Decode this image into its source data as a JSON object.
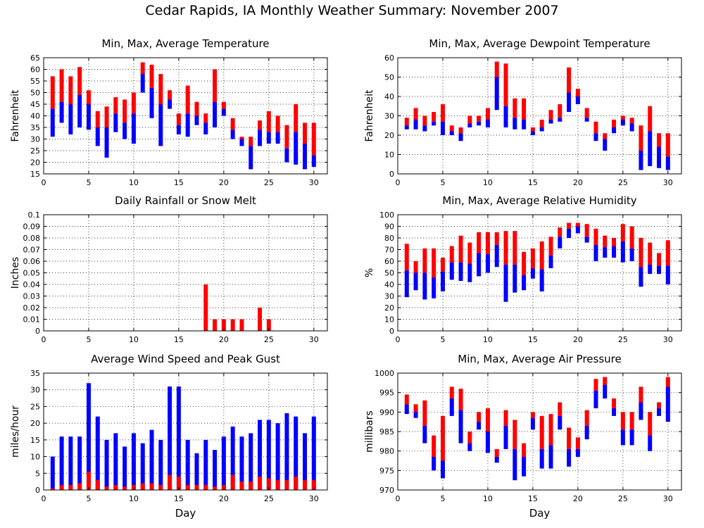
{
  "title": "Cedar Rapids, IA Monthly Weather Summary: November 2007",
  "colors": {
    "red": "#ff0000",
    "blue": "#0000ff",
    "grid": "#000000"
  },
  "chart_data": [
    {
      "id": "temperature",
      "type": "bar",
      "title": "Min, Max, Average Temperature",
      "ylabel": "Fahrenheit",
      "xlabel": "",
      "xlim": [
        0,
        31.5
      ],
      "ylim": [
        15,
        65
      ],
      "yticks": [
        15,
        20,
        25,
        30,
        35,
        40,
        45,
        50,
        55,
        60,
        65
      ],
      "xticks": [
        0,
        5,
        10,
        15,
        20,
        25,
        30
      ],
      "grid": "on",
      "days": [
        1,
        2,
        3,
        4,
        5,
        6,
        7,
        8,
        9,
        10,
        11,
        12,
        13,
        14,
        15,
        16,
        17,
        18,
        19,
        20,
        21,
        22,
        23,
        24,
        25,
        26,
        27,
        28,
        29,
        30
      ],
      "min": [
        31,
        37,
        32,
        35,
        34,
        27,
        22,
        33,
        30,
        28,
        50,
        39,
        27,
        43,
        32,
        31,
        36,
        32,
        35,
        40,
        30,
        27,
        17,
        27,
        28,
        28,
        20,
        19,
        17,
        18
      ],
      "avg": [
        43,
        46,
        45,
        49,
        45,
        35,
        35,
        41,
        37,
        41,
        58,
        52,
        45,
        47,
        36,
        41,
        40,
        37,
        46,
        43,
        34,
        30,
        27,
        34,
        33,
        33,
        26,
        33,
        28,
        23
      ],
      "max": [
        57,
        60,
        57,
        61,
        51,
        42,
        44,
        48,
        47,
        50,
        63,
        62,
        58,
        51,
        41,
        53,
        46,
        41,
        60,
        46,
        39,
        31,
        31,
        38,
        42,
        40,
        36,
        45,
        37,
        37
      ]
    },
    {
      "id": "dewpoint",
      "type": "bar",
      "title": "Min, Max, Average Dewpoint Temperature",
      "ylabel": "Fahrenheit",
      "xlabel": "",
      "xlim": [
        0,
        31.5
      ],
      "ylim": [
        0,
        60
      ],
      "yticks": [
        0,
        10,
        20,
        30,
        40,
        50,
        60
      ],
      "xticks": [
        0,
        5,
        10,
        15,
        20,
        25,
        30
      ],
      "grid": "on",
      "days": [
        1,
        2,
        3,
        4,
        5,
        6,
        7,
        8,
        9,
        10,
        11,
        12,
        13,
        14,
        15,
        16,
        17,
        18,
        19,
        20,
        21,
        22,
        23,
        24,
        25,
        26,
        27,
        28,
        29,
        30
      ],
      "min": [
        23,
        23,
        22,
        25,
        20,
        20,
        17,
        24,
        25,
        24,
        33,
        24,
        23,
        23,
        20,
        22,
        26,
        27,
        32,
        36,
        27,
        17,
        12,
        21,
        25,
        22,
        2,
        4,
        3,
        2
      ],
      "avg": [
        25,
        28,
        25,
        27,
        27,
        22,
        21,
        26,
        27,
        28,
        50,
        35,
        29,
        28,
        22,
        24,
        28,
        29,
        42,
        40,
        29,
        21,
        18,
        24,
        28,
        26,
        12,
        22,
        14,
        9
      ],
      "max": [
        29,
        34,
        30,
        32,
        36,
        25,
        24,
        30,
        30,
        34,
        58,
        57,
        39,
        39,
        24,
        28,
        33,
        36,
        55,
        44,
        34,
        27,
        21,
        28,
        30,
        29,
        25,
        35,
        21,
        21
      ]
    },
    {
      "id": "rainfall",
      "type": "bar",
      "title": "Daily Rainfall or Snow Melt",
      "ylabel": "Inches",
      "xlabel": "",
      "xlim": [
        0,
        31.5
      ],
      "ylim": [
        0,
        0.1
      ],
      "yticks": [
        0,
        0.01,
        0.02,
        0.03,
        0.04,
        0.05,
        0.06,
        0.07,
        0.08,
        0.09,
        0.1
      ],
      "xticks": [
        0,
        5,
        10,
        15,
        20,
        25,
        30
      ],
      "grid": "on",
      "days": [
        18,
        19,
        20,
        21,
        22,
        24,
        25
      ],
      "values": [
        0.04,
        0.01,
        0.01,
        0.01,
        0.01,
        0.02,
        0.01
      ]
    },
    {
      "id": "humidity",
      "type": "bar",
      "title": "Min, Max, Average Relative Humidity",
      "ylabel": "%",
      "xlabel": "",
      "xlim": [
        0,
        31.5
      ],
      "ylim": [
        0,
        100
      ],
      "yticks": [
        0,
        10,
        20,
        30,
        40,
        50,
        60,
        70,
        80,
        90,
        100
      ],
      "xticks": [
        0,
        5,
        10,
        15,
        20,
        25,
        30
      ],
      "grid": "on",
      "days": [
        1,
        2,
        3,
        4,
        5,
        6,
        7,
        8,
        9,
        10,
        11,
        12,
        13,
        14,
        15,
        16,
        17,
        18,
        19,
        20,
        21,
        22,
        23,
        24,
        25,
        26,
        27,
        28,
        29,
        30
      ],
      "min": [
        29,
        35,
        27,
        28,
        34,
        44,
        43,
        42,
        47,
        50,
        55,
        25,
        33,
        35,
        45,
        34,
        54,
        71,
        80,
        84,
        76,
        60,
        63,
        63,
        59,
        60,
        38,
        49,
        49,
        40
      ],
      "avg": [
        52,
        50,
        50,
        46,
        51,
        59,
        59,
        58,
        67,
        66,
        74,
        57,
        57,
        48,
        54,
        53,
        65,
        81,
        88,
        90,
        81,
        74,
        72,
        73,
        77,
        71,
        55,
        57,
        56,
        56
      ],
      "max": [
        75,
        60,
        71,
        71,
        63,
        73,
        82,
        76,
        85,
        85,
        85,
        86,
        86,
        68,
        71,
        77,
        81,
        89,
        93,
        93,
        92,
        88,
        82,
        80,
        92,
        90,
        80,
        76,
        67,
        78
      ]
    },
    {
      "id": "wind",
      "type": "bar",
      "title": "Average Wind Speed and Peak Gust",
      "ylabel": "miles/hour",
      "xlabel": "Day",
      "xlim": [
        0,
        31.5
      ],
      "ylim": [
        0,
        35
      ],
      "yticks": [
        0,
        5,
        10,
        15,
        20,
        25,
        30,
        35
      ],
      "xticks": [
        0,
        5,
        10,
        15,
        20,
        25,
        30
      ],
      "grid": "on",
      "days": [
        1,
        2,
        3,
        4,
        5,
        6,
        7,
        8,
        9,
        10,
        11,
        12,
        13,
        14,
        15,
        16,
        17,
        18,
        19,
        20,
        21,
        22,
        23,
        24,
        25,
        26,
        27,
        28,
        29,
        30
      ],
      "gust": [
        10,
        16,
        16,
        16,
        32,
        22,
        15,
        17,
        13,
        17,
        14,
        18,
        15,
        31,
        31,
        15,
        11,
        15,
        12,
        16,
        19,
        16,
        17,
        21,
        21,
        20,
        23,
        22,
        17,
        22
      ],
      "avg": [
        0.5,
        1.5,
        1.5,
        2,
        5.5,
        3,
        1,
        1.5,
        1,
        1.5,
        2,
        2,
        1.5,
        4.5,
        4,
        1.5,
        1.5,
        1.5,
        1,
        1.5,
        4.5,
        2.5,
        2.5,
        4,
        3.5,
        3,
        3,
        4,
        3,
        3
      ]
    },
    {
      "id": "pressure",
      "type": "bar",
      "title": "Min, Max, Average Air Pressure",
      "ylabel": "millibars",
      "xlabel": "Day",
      "xlim": [
        0,
        31.5
      ],
      "ylim": [
        970,
        1000
      ],
      "yticks": [
        970,
        975,
        980,
        985,
        990,
        995,
        1000
      ],
      "xticks": [
        0,
        5,
        10,
        15,
        20,
        25,
        30
      ],
      "grid": "on",
      "days": [
        1,
        2,
        3,
        4,
        5,
        6,
        7,
        8,
        9,
        10,
        11,
        12,
        13,
        14,
        15,
        16,
        17,
        18,
        19,
        20,
        21,
        22,
        23,
        24,
        25,
        26,
        27,
        28,
        29,
        30
      ],
      "min": [
        989.5,
        988.5,
        982,
        975,
        973,
        989,
        982,
        980,
        985.5,
        979.5,
        977,
        980.5,
        972.5,
        973.5,
        985.5,
        975.5,
        975.5,
        985.5,
        976,
        978.5,
        983,
        991,
        993.5,
        989,
        981.5,
        981.5,
        988,
        980,
        989,
        987.5
      ],
      "avg": [
        992,
        990,
        986.5,
        978.5,
        977.5,
        993.5,
        990.5,
        982,
        987.5,
        985,
        978.5,
        986.5,
        980.5,
        978.5,
        988.5,
        980.5,
        981.5,
        989,
        980.5,
        980.5,
        986.5,
        995.5,
        997,
        991,
        985.5,
        985.5,
        992.5,
        984,
        991,
        996.5
      ],
      "max": [
        994.5,
        992,
        993,
        984,
        989,
        996.5,
        996,
        985,
        990,
        991,
        980.5,
        990.5,
        988,
        982,
        990,
        989,
        989.5,
        992.5,
        986,
        983.5,
        990.5,
        998.5,
        999,
        993.5,
        990,
        990,
        996.5,
        990,
        992.5,
        999
      ]
    }
  ]
}
